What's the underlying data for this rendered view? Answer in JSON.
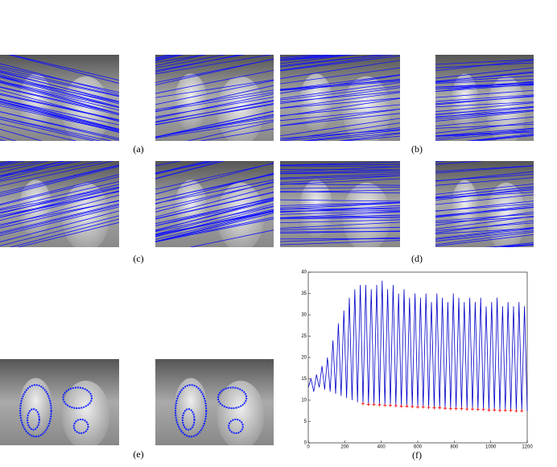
{
  "labels": [
    "(a)",
    "(b)",
    "(c)",
    "(d)",
    "(e)",
    "(f)"
  ],
  "chart_data": {
    "type": "line",
    "xlim": [
      0,
      1200
    ],
    "ylim": [
      0,
      40
    ],
    "xticks": [
      0,
      200,
      400,
      600,
      800,
      1000,
      1200
    ],
    "yticks": [
      0,
      5,
      10,
      15,
      20,
      25,
      30,
      35,
      40
    ],
    "series": [
      {
        "color": "#0000c8",
        "x": [
          0,
          15,
          30,
          45,
          60,
          75,
          90,
          105,
          120,
          135,
          150,
          165,
          180,
          195,
          210,
          225,
          240,
          255,
          270,
          285,
          300,
          315,
          330,
          345,
          360,
          375,
          390,
          405,
          420,
          435,
          450,
          465,
          480,
          495,
          510,
          525,
          540,
          555,
          570,
          585,
          600,
          615,
          630,
          645,
          660,
          675,
          690,
          705,
          720,
          735,
          750,
          765,
          780,
          795,
          810,
          825,
          840,
          855,
          870,
          885,
          900,
          915,
          930,
          945,
          960,
          975,
          990,
          1005,
          1020,
          1035,
          1050,
          1065,
          1080,
          1095,
          1110,
          1125,
          1140,
          1155,
          1170,
          1185,
          1200
        ],
        "values": [
          13,
          15,
          12,
          16,
          13,
          18,
          12.5,
          20,
          12,
          24,
          11.5,
          28,
          11,
          31,
          10.5,
          34,
          10,
          36,
          9.5,
          37,
          9.2,
          37,
          9,
          36,
          9,
          37,
          8.9,
          38,
          8.8,
          36,
          8.8,
          37,
          8.7,
          35,
          8.6,
          36,
          8.6,
          34,
          8.5,
          35,
          8.4,
          34,
          8.4,
          35,
          8.3,
          33,
          8.2,
          35,
          8.2,
          34,
          8.1,
          33,
          8,
          35,
          8,
          34,
          8,
          33,
          7.9,
          34,
          7.9,
          33,
          7.8,
          34,
          7.8,
          32,
          7.7,
          33,
          7.7,
          34,
          7.6,
          32,
          7.6,
          33,
          7.6,
          32,
          7.5,
          33,
          7.5,
          32,
          7.5
        ]
      },
      {
        "color": "#ff0000",
        "marker": "+",
        "x": [
          300,
          330,
          360,
          390,
          420,
          450,
          480,
          510,
          540,
          570,
          600,
          630,
          660,
          690,
          720,
          750,
          780,
          810,
          840,
          870,
          900,
          930,
          960,
          990,
          1020,
          1050,
          1080,
          1110,
          1140,
          1170
        ],
        "values": [
          9.2,
          9,
          9,
          8.9,
          8.8,
          8.8,
          8.7,
          8.6,
          8.6,
          8.5,
          8.4,
          8.4,
          8.3,
          8.2,
          8.2,
          8.1,
          8,
          8,
          8,
          7.9,
          7.9,
          7.8,
          7.8,
          7.7,
          7.7,
          7.6,
          7.6,
          7.6,
          7.5,
          7.5
        ]
      }
    ]
  }
}
